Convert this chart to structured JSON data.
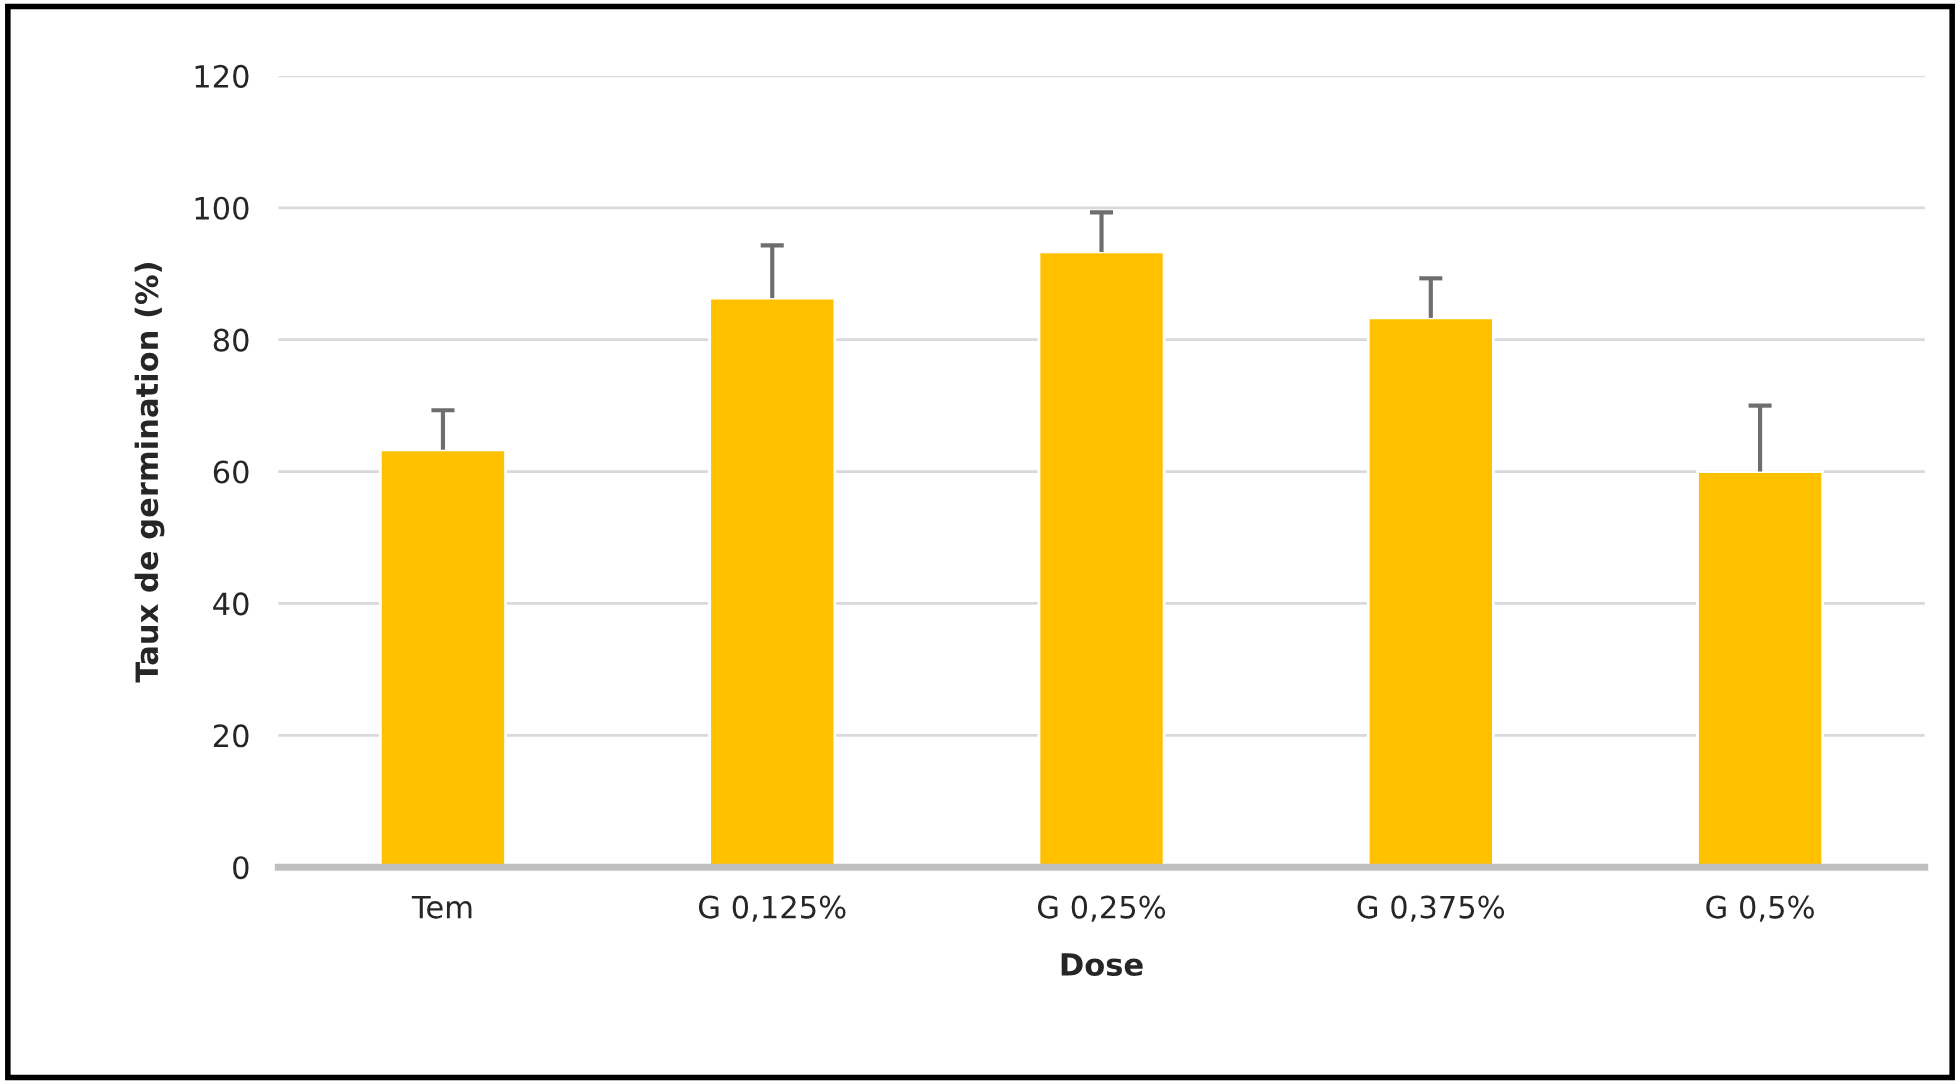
{
  "chart_data": {
    "type": "bar",
    "xlabel": "Dose",
    "ylabel": "Taux de germination (%)",
    "categories": [
      "Tem",
      "G 0,125%",
      "G 0,25%",
      "G 0,375%",
      "G 0,5%"
    ],
    "values": [
      63.3,
      86.3,
      93.3,
      83.3,
      60
    ],
    "errors": [
      [
        63.3,
        69.3
      ],
      [
        86.3,
        94.3
      ],
      [
        93.3,
        99.3
      ],
      [
        83.3,
        89.3
      ],
      [
        60,
        70
      ]
    ],
    "color": "#ffc000",
    "ylim": [
      0,
      120
    ],
    "yticks": [
      0,
      20,
      40,
      60,
      80,
      100,
      120
    ],
    "grid": "y"
  }
}
